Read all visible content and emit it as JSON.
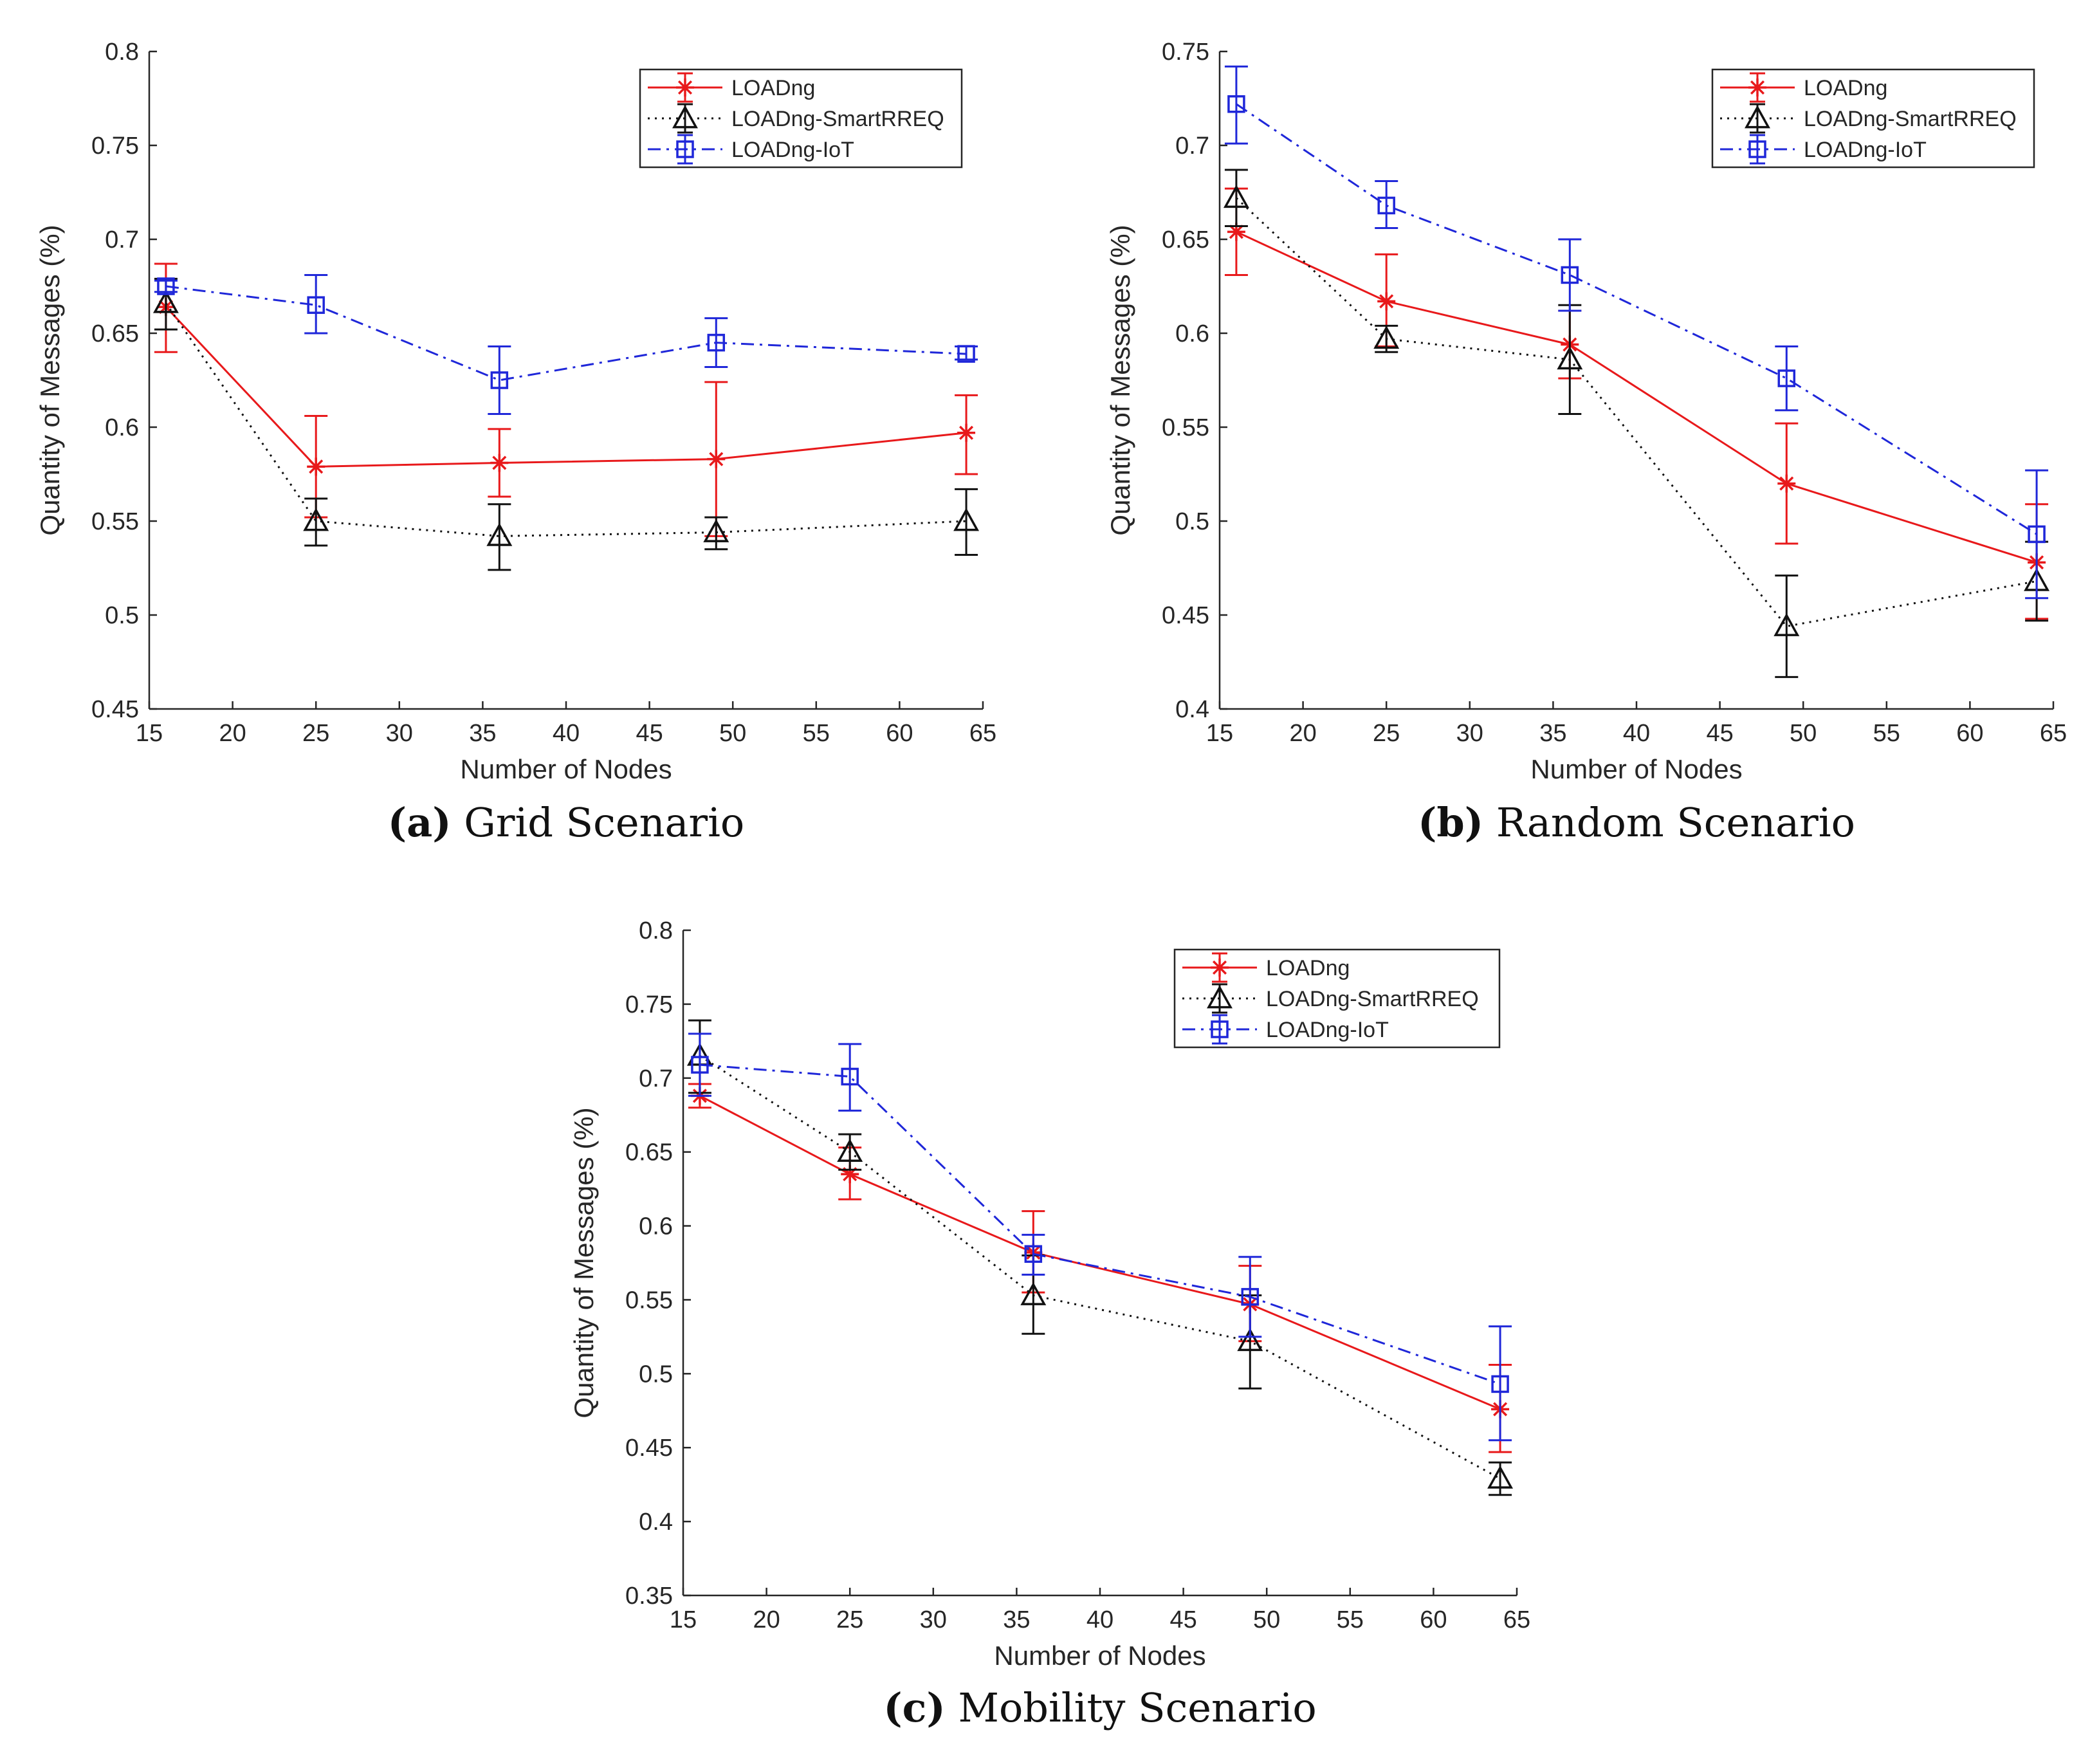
{
  "chart_data": [
    {
      "type": "line",
      "caption_letter": "a",
      "caption_text": "Grid Scenario",
      "xlabel": "Number of Nodes",
      "ylabel": "Quantity of Messages (%)",
      "xlim": [
        15,
        65
      ],
      "ylim": [
        0.45,
        0.8
      ],
      "xticks": [
        15,
        20,
        25,
        30,
        35,
        40,
        45,
        50,
        55,
        60,
        65
      ],
      "yticks": [
        0.45,
        0.5,
        0.55,
        0.6,
        0.65,
        0.7,
        0.75,
        0.8
      ],
      "ytick_labels": [
        "0.45",
        "0.5",
        "0.55",
        "0.6",
        "0.65",
        "0.7",
        "0.75",
        "0.8"
      ],
      "x": [
        16,
        25,
        36,
        49,
        64
      ],
      "legend_position": "top-right",
      "series": [
        {
          "name": "LOADng",
          "color": "#e8191b",
          "dash": "solid",
          "marker": "star",
          "values": [
            0.664,
            0.579,
            0.581,
            0.583,
            0.597
          ],
          "err_low": [
            0.64,
            0.552,
            0.563,
            0.542,
            0.575
          ],
          "err_high": [
            0.687,
            0.606,
            0.599,
            0.624,
            0.617
          ]
        },
        {
          "name": "LOADng-SmartRREQ",
          "color": "#111111",
          "dash": "dotted",
          "marker": "triangle",
          "values": [
            0.666,
            0.55,
            0.542,
            0.544,
            0.55
          ],
          "err_low": [
            0.652,
            0.537,
            0.524,
            0.535,
            0.532
          ],
          "err_high": [
            0.679,
            0.562,
            0.559,
            0.552,
            0.567
          ]
        },
        {
          "name": "LOADng-IoT",
          "color": "#1f27d9",
          "dash": "dashdot",
          "marker": "square",
          "values": [
            0.675,
            0.665,
            0.625,
            0.645,
            0.639
          ],
          "err_low": [
            0.672,
            0.65,
            0.607,
            0.632,
            0.636
          ],
          "err_high": [
            0.678,
            0.681,
            0.643,
            0.658,
            0.643
          ]
        }
      ]
    },
    {
      "type": "line",
      "caption_letter": "b",
      "caption_text": "Random Scenario",
      "xlabel": "Number of Nodes",
      "ylabel": "Quantity of Messages (%)",
      "xlim": [
        15,
        65
      ],
      "ylim": [
        0.4,
        0.75
      ],
      "xticks": [
        15,
        20,
        25,
        30,
        35,
        40,
        45,
        50,
        55,
        60,
        65
      ],
      "yticks": [
        0.4,
        0.45,
        0.5,
        0.55,
        0.6,
        0.65,
        0.7,
        0.75
      ],
      "ytick_labels": [
        "0.4",
        "0.45",
        "0.5",
        "0.55",
        "0.6",
        "0.65",
        "0.7",
        "0.75"
      ],
      "x": [
        16,
        25,
        36,
        49,
        64
      ],
      "legend_position": "top-right",
      "series": [
        {
          "name": "LOADng",
          "color": "#e8191b",
          "dash": "solid",
          "marker": "star",
          "values": [
            0.654,
            0.617,
            0.594,
            0.52,
            0.478
          ],
          "err_low": [
            0.631,
            0.593,
            0.576,
            0.488,
            0.448
          ],
          "err_high": [
            0.677,
            0.642,
            0.612,
            0.552,
            0.509
          ]
        },
        {
          "name": "LOADng-SmartRREQ",
          "color": "#111111",
          "dash": "dotted",
          "marker": "triangle",
          "values": [
            0.672,
            0.597,
            0.586,
            0.444,
            0.468
          ],
          "err_low": [
            0.657,
            0.59,
            0.557,
            0.417,
            0.447
          ],
          "err_high": [
            0.687,
            0.604,
            0.615,
            0.471,
            0.489
          ]
        },
        {
          "name": "LOADng-IoT",
          "color": "#1f27d9",
          "dash": "dashdot",
          "marker": "square",
          "values": [
            0.722,
            0.668,
            0.631,
            0.576,
            0.493
          ],
          "err_low": [
            0.701,
            0.656,
            0.612,
            0.559,
            0.459
          ],
          "err_high": [
            0.742,
            0.681,
            0.65,
            0.593,
            0.527
          ]
        }
      ]
    },
    {
      "type": "line",
      "caption_letter": "c",
      "caption_text": "Mobility Scenario",
      "xlabel": "Number of Nodes",
      "ylabel": "Quantity of Messages (%)",
      "xlim": [
        15,
        65
      ],
      "ylim": [
        0.35,
        0.8
      ],
      "xticks": [
        15,
        20,
        25,
        30,
        35,
        40,
        45,
        50,
        55,
        60,
        65
      ],
      "yticks": [
        0.35,
        0.4,
        0.45,
        0.5,
        0.55,
        0.6,
        0.65,
        0.7,
        0.75,
        0.8
      ],
      "ytick_labels": [
        "0.35",
        "0.4",
        "0.45",
        "0.5",
        "0.55",
        "0.6",
        "0.65",
        "0.7",
        "0.75",
        "0.8"
      ],
      "x": [
        16,
        25,
        36,
        49,
        64
      ],
      "legend_position": "top-right",
      "series": [
        {
          "name": "LOADng",
          "color": "#e8191b",
          "dash": "solid",
          "marker": "star",
          "values": [
            0.688,
            0.635,
            0.582,
            0.547,
            0.476
          ],
          "err_low": [
            0.68,
            0.618,
            0.555,
            0.522,
            0.447
          ],
          "err_high": [
            0.696,
            0.653,
            0.61,
            0.573,
            0.506
          ]
        },
        {
          "name": "LOADng-SmartRREQ",
          "color": "#111111",
          "dash": "dotted",
          "marker": "triangle",
          "values": [
            0.715,
            0.65,
            0.553,
            0.522,
            0.429
          ],
          "err_low": [
            0.69,
            0.638,
            0.527,
            0.49,
            0.418
          ],
          "err_high": [
            0.739,
            0.662,
            0.58,
            0.553,
            0.44
          ]
        },
        {
          "name": "LOADng-IoT",
          "color": "#1f27d9",
          "dash": "dashdot",
          "marker": "square",
          "values": [
            0.709,
            0.701,
            0.581,
            0.552,
            0.493
          ],
          "err_low": [
            0.688,
            0.678,
            0.567,
            0.525,
            0.455
          ],
          "err_high": [
            0.73,
            0.723,
            0.594,
            0.579,
            0.532
          ]
        }
      ]
    }
  ]
}
